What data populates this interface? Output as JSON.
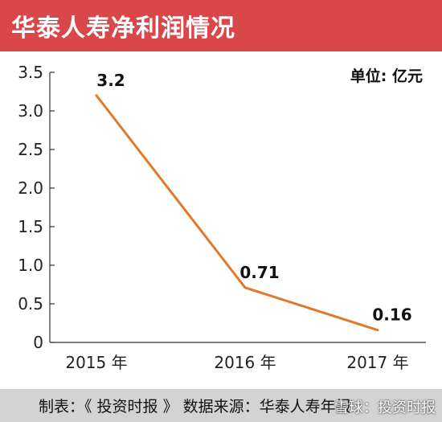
{
  "title": "华泰人寿净利润情况",
  "unit_label": "单位: 亿元",
  "footer": "制表：《 投资时报 》 数据来源：华泰人寿年报",
  "watermark": "雪球：投资时报",
  "colors": {
    "title_bg": "#d9474b",
    "line": "#e07a2a",
    "footer_bg": "#d3d3d3"
  },
  "chart_data": {
    "type": "line",
    "title": "华泰人寿净利润情况",
    "x": [
      "2015 年",
      "2016 年",
      "2017 年"
    ],
    "series": [
      {
        "values": [
          3.2,
          0.71,
          0.16
        ]
      }
    ],
    "data_labels": [
      "3.2",
      "0.71",
      "0.16"
    ],
    "yticks": [
      "0",
      "0.5",
      "1.0",
      "1.5",
      "2.0",
      "2.5",
      "3.0",
      "3.5"
    ],
    "ylim": [
      0,
      3.5
    ],
    "grid": false
  }
}
